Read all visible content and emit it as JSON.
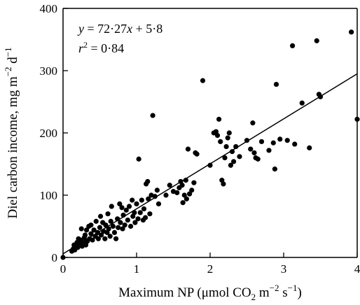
{
  "chart_data": {
    "type": "scatter",
    "title": "",
    "xlabel_main": "Maximum NP (μmol CO",
    "xlabel_sub2": "2",
    "xlabel_m": " m",
    "xlabel_sup1": "−2",
    "xlabel_s": " s",
    "xlabel_sup2": "−1",
    "xlabel_close": ")",
    "ylabel_main": "Diel carbon income, mg m",
    "ylabel_sup1": "−2",
    "ylabel_d": " d",
    "ylabel_sup2": "−1",
    "xlim": [
      0,
      4
    ],
    "ylim": [
      0,
      400
    ],
    "xticks": [
      "0",
      "1",
      "2",
      "3",
      "4"
    ],
    "yticks": [
      "0",
      "100",
      "200",
      "300",
      "400"
    ],
    "grid": false,
    "legend": "none",
    "regression": {
      "equation_prefix": "y",
      "equation_rest": " = 72·27",
      "equation_x": "x",
      "equation_tail": " + 5·8",
      "r2_r": "r",
      "r2_sup": "2",
      "r2_tail": " = 0·84",
      "slope": 72.27,
      "intercept": 5.8,
      "x_range": [
        0,
        4
      ]
    },
    "points": [
      [
        0.0,
        0
      ],
      [
        0.12,
        10
      ],
      [
        0.14,
        14
      ],
      [
        0.15,
        20
      ],
      [
        0.16,
        12
      ],
      [
        0.18,
        18
      ],
      [
        0.19,
        24
      ],
      [
        0.2,
        16
      ],
      [
        0.21,
        30
      ],
      [
        0.22,
        22
      ],
      [
        0.24,
        28
      ],
      [
        0.25,
        46
      ],
      [
        0.26,
        18
      ],
      [
        0.28,
        24
      ],
      [
        0.29,
        32
      ],
      [
        0.3,
        36
      ],
      [
        0.31,
        20
      ],
      [
        0.32,
        44
      ],
      [
        0.33,
        26
      ],
      [
        0.35,
        50
      ],
      [
        0.36,
        30
      ],
      [
        0.38,
        52
      ],
      [
        0.38,
        38
      ],
      [
        0.4,
        28
      ],
      [
        0.42,
        44
      ],
      [
        0.44,
        34
      ],
      [
        0.45,
        58
      ],
      [
        0.47,
        40
      ],
      [
        0.48,
        30
      ],
      [
        0.5,
        48
      ],
      [
        0.51,
        66
      ],
      [
        0.52,
        36
      ],
      [
        0.54,
        56
      ],
      [
        0.55,
        42
      ],
      [
        0.57,
        30
      ],
      [
        0.58,
        52
      ],
      [
        0.6,
        40
      ],
      [
        0.61,
        70
      ],
      [
        0.62,
        46
      ],
      [
        0.64,
        34
      ],
      [
        0.65,
        58
      ],
      [
        0.66,
        82
      ],
      [
        0.68,
        50
      ],
      [
        0.7,
        40
      ],
      [
        0.72,
        30
      ],
      [
        0.74,
        62
      ],
      [
        0.75,
        48
      ],
      [
        0.77,
        86
      ],
      [
        0.78,
        56
      ],
      [
        0.8,
        80
      ],
      [
        0.81,
        46
      ],
      [
        0.82,
        68
      ],
      [
        0.84,
        52
      ],
      [
        0.86,
        76
      ],
      [
        0.88,
        60
      ],
      [
        0.9,
        82
      ],
      [
        0.92,
        50
      ],
      [
        0.94,
        92
      ],
      [
        0.95,
        66
      ],
      [
        0.97,
        72
      ],
      [
        0.98,
        56
      ],
      [
        1.0,
        86
      ],
      [
        1.02,
        62
      ],
      [
        1.03,
        158
      ],
      [
        1.05,
        72
      ],
      [
        1.07,
        92
      ],
      [
        1.09,
        60
      ],
      [
        1.1,
        78
      ],
      [
        1.12,
        64
      ],
      [
        1.13,
        118
      ],
      [
        1.15,
        122
      ],
      [
        1.16,
        94
      ],
      [
        1.18,
        70
      ],
      [
        1.2,
        100
      ],
      [
        1.22,
        228
      ],
      [
        1.25,
        98
      ],
      [
        1.28,
        108
      ],
      [
        1.3,
        86
      ],
      [
        1.4,
        100
      ],
      [
        1.45,
        116
      ],
      [
        1.5,
        106
      ],
      [
        1.55,
        104
      ],
      [
        1.58,
        112
      ],
      [
        1.6,
        122
      ],
      [
        1.62,
        116
      ],
      [
        1.63,
        88
      ],
      [
        1.65,
        100
      ],
      [
        1.67,
        124
      ],
      [
        1.68,
        94
      ],
      [
        1.7,
        174
      ],
      [
        1.72,
        102
      ],
      [
        1.75,
        108
      ],
      [
        1.78,
        120
      ],
      [
        1.8,
        168
      ],
      [
        1.82,
        166
      ],
      [
        1.9,
        284
      ],
      [
        2.0,
        148
      ],
      [
        2.05,
        200
      ],
      [
        2.08,
        202
      ],
      [
        2.1,
        196
      ],
      [
        2.12,
        222
      ],
      [
        2.14,
        186
      ],
      [
        2.16,
        124
      ],
      [
        2.18,
        118
      ],
      [
        2.2,
        160
      ],
      [
        2.22,
        178
      ],
      [
        2.24,
        192
      ],
      [
        2.26,
        200
      ],
      [
        2.28,
        148
      ],
      [
        2.3,
        170
      ],
      [
        2.32,
        154
      ],
      [
        2.35,
        178
      ],
      [
        2.4,
        162
      ],
      [
        2.5,
        188
      ],
      [
        2.55,
        174
      ],
      [
        2.58,
        216
      ],
      [
        2.6,
        168
      ],
      [
        2.62,
        160
      ],
      [
        2.65,
        158
      ],
      [
        2.7,
        186
      ],
      [
        2.8,
        172
      ],
      [
        2.86,
        184
      ],
      [
        2.88,
        142
      ],
      [
        2.9,
        278
      ],
      [
        2.95,
        190
      ],
      [
        3.05,
        188
      ],
      [
        3.12,
        340
      ],
      [
        3.15,
        182
      ],
      [
        3.25,
        248
      ],
      [
        3.35,
        176
      ],
      [
        3.45,
        348
      ],
      [
        3.48,
        262
      ],
      [
        3.5,
        258
      ],
      [
        3.92,
        362
      ],
      [
        4.0,
        222
      ]
    ]
  }
}
